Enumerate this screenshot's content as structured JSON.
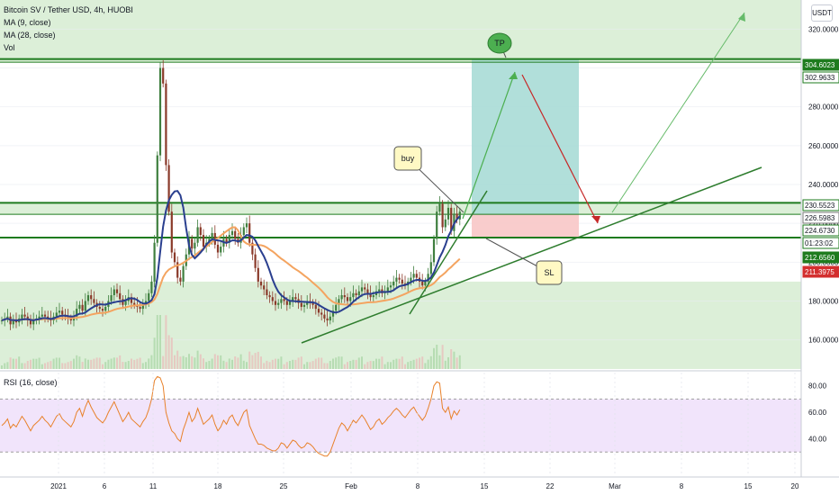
{
  "header": {
    "title": "Bitcoin SV / Tether USD, 4h, HUOBI",
    "indicators": [
      "MA (9, close)",
      "MA (28, close)",
      "Vol"
    ],
    "rsi_label": "RSI (16, close)",
    "currency": "USDT"
  },
  "colors": {
    "up": "#26a69a",
    "down": "#ef5350",
    "ma9": "#2a3f8f",
    "ma28": "#f4a460",
    "hline": "#1e7b1e",
    "zone_green": "#d6ecd1",
    "tp_zone": "#a8dcd6",
    "sl_zone": "#f8c6c6",
    "rsi_line": "#e8812a",
    "rsi_band": "#f1e4fb"
  },
  "chart_data": [
    {
      "type": "candlestick",
      "title": "Bitcoin SV / Tether USD, 4h, HUOBI",
      "y_axis": {
        "ticks": [
          160.0,
          180.0,
          200.0,
          220.0,
          240.0,
          260.0,
          280.0,
          300.0,
          320.0
        ],
        "range": [
          145.0,
          335.0
        ]
      },
      "x_axis": {
        "ticks": [
          "2021",
          "6",
          "11",
          "18",
          "25",
          "Feb",
          "8",
          "15",
          "22",
          "Mar",
          "8",
          "15",
          "20"
        ]
      },
      "price_labels": [
        {
          "value": 304.6023,
          "label": "304.6023",
          "style": "green"
        },
        {
          "value": 302.9633,
          "label": "302.9633",
          "style": "green-outline"
        },
        {
          "value": 230.5523,
          "label": "230.5523",
          "style": "green-outline"
        },
        {
          "value": 226.5983,
          "label": "226.5983",
          "style": "dark"
        },
        {
          "value": 224.673,
          "label": "224.6730",
          "style": "green-outline"
        },
        {
          "value": 220.5,
          "label": "01:23:02",
          "style": "green-outline"
        },
        {
          "value": 212.656,
          "label": "212.6560",
          "style": "green"
        },
        {
          "value": 211.3975,
          "label": "211.3975",
          "style": "red"
        }
      ],
      "horizontal_levels": [
        304.6023,
        302.9633,
        230.5523,
        224.673,
        212.656,
        211.3975
      ],
      "zones": [
        {
          "name": "upper-green",
          "from": 302.9633,
          "to": 335.0
        },
        {
          "name": "middle-green",
          "from": 224.673,
          "to": 230.5523
        },
        {
          "name": "lower-green",
          "from": 145.0,
          "to": 190.0
        }
      ],
      "position": {
        "entry": 224.673,
        "take_profit": 304.6023,
        "stop_loss": 212.656
      },
      "annotations": [
        "buy",
        "TP",
        "SL"
      ],
      "close_series": [
        170,
        171,
        172,
        168,
        170,
        169,
        171,
        173,
        172,
        170,
        168,
        170,
        171,
        172,
        173,
        172,
        171,
        170,
        172,
        174,
        175,
        173,
        172,
        171,
        170,
        172,
        176,
        178,
        175,
        180,
        183,
        181,
        179,
        177,
        176,
        175,
        177,
        180,
        183,
        186,
        184,
        181,
        178,
        180,
        182,
        179,
        178,
        177,
        176,
        178,
        180,
        184,
        190,
        210,
        255,
        300,
        292,
        250,
        226,
        205,
        200,
        192,
        190,
        198,
        204,
        212,
        207,
        210,
        218,
        214,
        208,
        210,
        212,
        215,
        209,
        205,
        208,
        212,
        210,
        214,
        216,
        212,
        210,
        214,
        218,
        220,
        210,
        204,
        197,
        190,
        188,
        186,
        183,
        182,
        180,
        178,
        179,
        181,
        180,
        178,
        180,
        182,
        181,
        179,
        177,
        178,
        180,
        179,
        178,
        176,
        174,
        173,
        171,
        170,
        172,
        175,
        178,
        181,
        183,
        182,
        180,
        182,
        184,
        183,
        185,
        187,
        186,
        184,
        182,
        183,
        185,
        186,
        184,
        185,
        187,
        188,
        190,
        192,
        191,
        189,
        188,
        190,
        192,
        194,
        192,
        190,
        188,
        190,
        194,
        200,
        212,
        226,
        230,
        218,
        222,
        228,
        216,
        225,
        222,
        226
      ],
      "rsi": {
        "ticks": [
          40.0,
          60.0,
          80.0
        ],
        "range": [
          20,
          90
        ],
        "values": [
          50,
          52,
          55,
          48,
          51,
          49,
          53,
          57,
          54,
          50,
          46,
          50,
          52,
          54,
          57,
          54,
          52,
          49,
          53,
          57,
          59,
          55,
          53,
          51,
          49,
          53,
          60,
          63,
          57,
          64,
          69,
          64,
          60,
          56,
          54,
          52,
          55,
          60,
          64,
          68,
          63,
          58,
          53,
          56,
          60,
          55,
          53,
          51,
          49,
          53,
          56,
          62,
          70,
          84,
          87,
          86,
          80,
          60,
          52,
          46,
          44,
          40,
          38,
          47,
          53,
          60,
          53,
          56,
          63,
          57,
          51,
          53,
          55,
          58,
          51,
          46,
          49,
          54,
          51,
          56,
          58,
          53,
          50,
          55,
          60,
          62,
          50,
          45,
          40,
          36,
          36,
          35,
          33,
          32,
          31,
          31,
          33,
          37,
          36,
          33,
          36,
          39,
          38,
          35,
          33,
          34,
          37,
          36,
          34,
          31,
          29,
          28,
          27,
          27,
          30,
          36,
          42,
          48,
          52,
          50,
          46,
          50,
          54,
          52,
          55,
          58,
          55,
          51,
          47,
          49,
          53,
          55,
          51,
          53,
          56,
          58,
          61,
          63,
          61,
          58,
          56,
          59,
          62,
          64,
          60,
          57,
          54,
          57,
          63,
          70,
          80,
          83,
          82,
          63,
          60,
          64,
          55,
          61,
          58,
          62
        ]
      }
    }
  ]
}
